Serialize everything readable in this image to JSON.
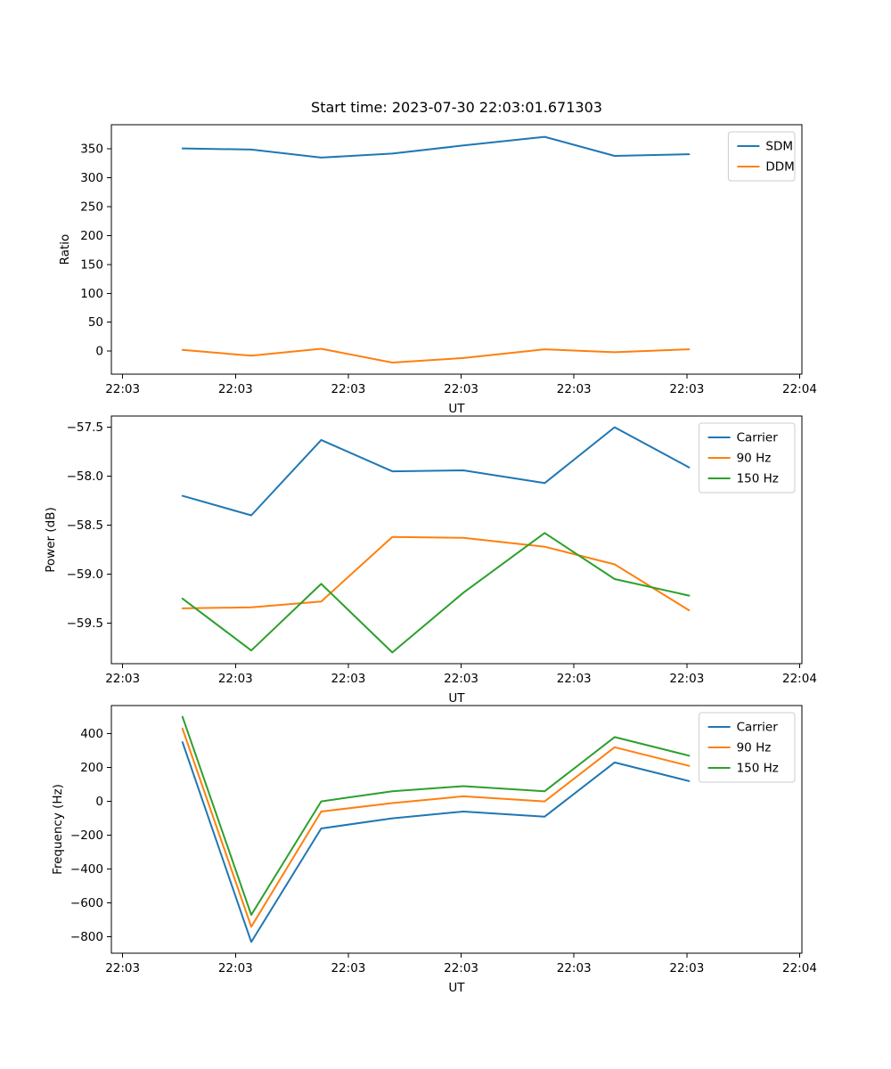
{
  "title": "Start time: 2023-07-30 22:03:01.671303",
  "colors": {
    "blue": "#1f77b4",
    "orange": "#ff7f0e",
    "green": "#2ca02c"
  },
  "chart_data": [
    {
      "type": "line",
      "xlabel": "UT",
      "ylabel": "Ratio",
      "xlim": [
        -1.0,
        60.2
      ],
      "ylim": [
        -40,
        392
      ],
      "x": [
        5.3,
        11.4,
        17.6,
        23.9,
        30.2,
        37.4,
        43.6,
        50.2
      ],
      "xticks": [
        0,
        10,
        20,
        30,
        40,
        50,
        60
      ],
      "xticklabels": [
        "22:03",
        "22:03",
        "22:03",
        "22:03",
        "22:03",
        "22:03",
        "22:04"
      ],
      "yticks": [
        0,
        50,
        100,
        150,
        200,
        250,
        300,
        350
      ],
      "yticklabels": [
        "0",
        "50",
        "100",
        "150",
        "200",
        "250",
        "300",
        "350"
      ],
      "legend_loc": "upper right",
      "legend": [
        "SDM",
        "DDM"
      ],
      "series": [
        {
          "name": "SDM",
          "color": "#1f77b4",
          "values": [
            351,
            349,
            335,
            342,
            356,
            371,
            338,
            341
          ]
        },
        {
          "name": "DDM",
          "color": "#ff7f0e",
          "values": [
            2,
            -8,
            4,
            -20,
            -12,
            3,
            -2,
            3
          ]
        }
      ]
    },
    {
      "type": "line",
      "xlabel": "UT",
      "ylabel": "Power (dB)",
      "xlim": [
        -1.0,
        60.2
      ],
      "ylim": [
        -59.915,
        -57.385
      ],
      "x": [
        5.3,
        11.4,
        17.6,
        23.9,
        30.2,
        37.4,
        43.6,
        50.2
      ],
      "xticks": [
        0,
        10,
        20,
        30,
        40,
        50,
        60
      ],
      "xticklabels": [
        "22:03",
        "22:03",
        "22:03",
        "22:03",
        "22:03",
        "22:03",
        "22:04"
      ],
      "yticks": [
        -59.5,
        -59.0,
        -58.5,
        -58.0,
        -57.5
      ],
      "yticklabels": [
        "−59.5",
        "−59.0",
        "−58.5",
        "−58.0",
        "−57.5"
      ],
      "legend_loc": "upper right",
      "legend": [
        "Carrier",
        "90 Hz",
        "150 Hz"
      ],
      "series": [
        {
          "name": "Carrier",
          "color": "#1f77b4",
          "values": [
            -58.2,
            -58.4,
            -57.63,
            -57.95,
            -57.94,
            -58.07,
            -57.5,
            -57.91
          ]
        },
        {
          "name": "90 Hz",
          "color": "#ff7f0e",
          "values": [
            -59.35,
            -59.34,
            -59.28,
            -58.62,
            -58.63,
            -58.72,
            -58.9,
            -59.37
          ]
        },
        {
          "name": "150 Hz",
          "color": "#2ca02c",
          "values": [
            -59.25,
            -59.78,
            -59.1,
            -59.8,
            -59.19,
            -58.58,
            -59.05,
            -59.22
          ]
        }
      ]
    },
    {
      "type": "line",
      "xlabel": "UT",
      "ylabel": "Frequency (Hz)",
      "xlim": [
        -1.0,
        60.2
      ],
      "ylim": [
        -896.5,
        566.5
      ],
      "x": [
        5.3,
        11.4,
        17.6,
        23.9,
        30.2,
        37.4,
        43.6,
        50.2
      ],
      "xticks": [
        0,
        10,
        20,
        30,
        40,
        50,
        60
      ],
      "xticklabels": [
        "22:03",
        "22:03",
        "22:03",
        "22:03",
        "22:03",
        "22:03",
        "22:04"
      ],
      "yticks": [
        -800,
        -600,
        -400,
        -200,
        0,
        200,
        400
      ],
      "yticklabels": [
        "−800",
        "−600",
        "−400",
        "−200",
        "0",
        "200",
        "400"
      ],
      "legend_loc": "upper right",
      "legend": [
        "Carrier",
        "90 Hz",
        "150 Hz"
      ],
      "series": [
        {
          "name": "Carrier",
          "color": "#1f77b4",
          "values": [
            350,
            -830,
            -160,
            -100,
            -60,
            -90,
            230,
            120
          ]
        },
        {
          "name": "90 Hz",
          "color": "#ff7f0e",
          "values": [
            430,
            -740,
            -60,
            -10,
            30,
            0,
            320,
            210
          ]
        },
        {
          "name": "150 Hz",
          "color": "#2ca02c",
          "values": [
            500,
            -670,
            0,
            60,
            90,
            60,
            380,
            270
          ]
        }
      ]
    }
  ]
}
